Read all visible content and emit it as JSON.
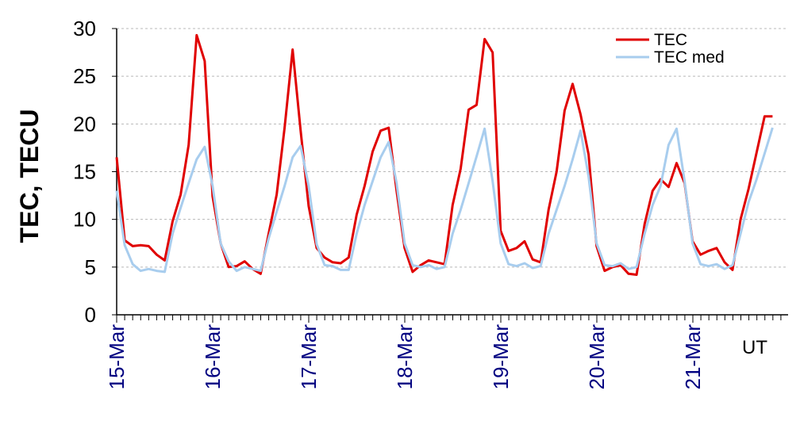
{
  "chart_data": {
    "type": "line",
    "ylabel": "TEC, TECU",
    "xlabel": "UT",
    "ylim": [
      0,
      30
    ],
    "yticks": [
      "0",
      "5",
      "10",
      "15",
      "20",
      "25",
      "30"
    ],
    "x_date_labels": [
      "15-Mar",
      "16-Mar",
      "17-Mar",
      "18-Mar",
      "19-Mar",
      "20-Mar",
      "21-Mar"
    ],
    "points_per_day": 12,
    "grid": true,
    "legend_position": "top-right",
    "series": [
      {
        "name": "TEC",
        "color": "#e00000",
        "values": [
          16.5,
          7.8,
          7.2,
          7.3,
          7.2,
          6.3,
          5.7,
          9.8,
          12.6,
          17.8,
          29.3,
          26.6,
          12.4,
          7.5,
          5.0,
          5.1,
          5.6,
          4.8,
          4.3,
          8.5,
          12.6,
          19.6,
          27.8,
          19.3,
          11.4,
          7.0,
          6.0,
          5.5,
          5.4,
          6.0,
          10.5,
          13.5,
          17.1,
          19.3,
          19.6,
          13.0,
          7.0,
          4.5,
          5.2,
          5.7,
          5.5,
          5.3,
          11.5,
          15.3,
          21.5,
          22.0,
          28.9,
          27.5,
          8.8,
          6.7,
          7.0,
          7.7,
          5.8,
          5.5,
          11.0,
          15.0,
          21.4,
          24.2,
          21.0,
          16.8,
          7.2,
          4.6,
          5.0,
          5.2,
          4.3,
          4.2,
          9.5,
          13.0,
          14.2,
          13.4,
          15.9,
          13.8,
          7.7,
          6.3,
          6.7,
          7.0,
          5.5,
          4.7,
          10.0,
          13.2,
          17.0,
          20.8,
          20.8
        ],
        "end_day_fraction": 6.83
      },
      {
        "name": "TEC med",
        "color": "#a8cdee",
        "values": [
          13.0,
          7.3,
          5.3,
          4.6,
          4.8,
          4.6,
          4.5,
          8.5,
          11.2,
          13.8,
          16.3,
          17.6,
          13.5,
          7.5,
          5.6,
          4.6,
          5.0,
          4.8,
          4.6,
          8.0,
          10.8,
          13.5,
          16.5,
          17.7,
          13.5,
          7.4,
          5.2,
          5.1,
          4.7,
          4.7,
          8.5,
          11.5,
          14.0,
          16.5,
          18.1,
          13.8,
          7.5,
          5.2,
          5.0,
          5.2,
          4.8,
          5.0,
          8.5,
          11.0,
          13.8,
          16.6,
          19.5,
          14.0,
          7.5,
          5.3,
          5.1,
          5.4,
          4.9,
          5.1,
          8.5,
          11.0,
          13.5,
          16.3,
          19.3,
          14.5,
          7.5,
          5.2,
          5.1,
          5.4,
          4.8,
          5.0,
          8.5,
          11.5,
          13.5,
          17.8,
          19.5,
          14.0,
          7.5,
          5.3,
          5.1,
          5.3,
          4.8,
          5.2,
          8.5,
          11.8,
          14.2,
          16.9,
          19.6
        ],
        "end_day_fraction": 6.83
      }
    ]
  }
}
